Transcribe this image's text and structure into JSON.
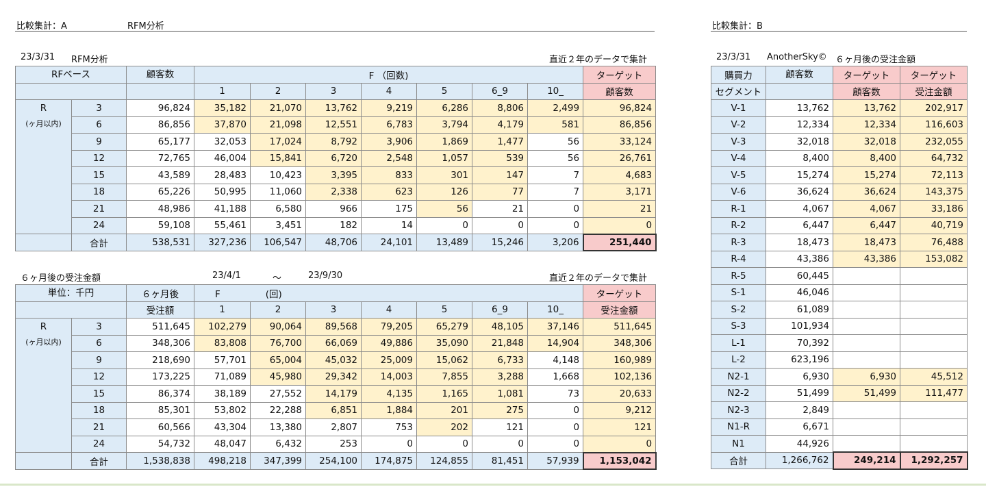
{
  "left": {
    "sheet_title": "比較集計：A",
    "sheet_subtitle": "RFM分析",
    "table1": {
      "date": "23/3/31",
      "title": "RFM分析",
      "note": "直近２年のデータで集計",
      "corner": "RFベース",
      "count_header": "顧客数",
      "f_header": "F （回数)",
      "target_header_1": "ターゲット",
      "target_header_2": "顧客数",
      "f_cols": [
        "1",
        "2",
        "3",
        "4",
        "5",
        "6_9",
        "10_"
      ],
      "r_label": "R",
      "r_sub": "(ヶ月以内)",
      "rows": [
        {
          "r": "3",
          "total": "96,824",
          "f": [
            "35,182",
            "21,070",
            "13,762",
            "9,219",
            "6,286",
            "8,806",
            "2,499"
          ],
          "target": "96,824"
        },
        {
          "r": "6",
          "total": "86,856",
          "f": [
            "37,870",
            "21,098",
            "12,551",
            "6,783",
            "3,794",
            "4,179",
            "581"
          ],
          "target": "86,856"
        },
        {
          "r": "9",
          "total": "65,177",
          "f": [
            "32,053",
            "17,024",
            "8,792",
            "3,906",
            "1,869",
            "1,477",
            "56"
          ],
          "target": "33,124"
        },
        {
          "r": "12",
          "total": "72,765",
          "f": [
            "46,004",
            "15,841",
            "6,720",
            "2,548",
            "1,057",
            "539",
            "56"
          ],
          "target": "26,761"
        },
        {
          "r": "15",
          "total": "43,589",
          "f": [
            "28,483",
            "10,423",
            "3,395",
            "833",
            "301",
            "147",
            "7"
          ],
          "target": "4,683"
        },
        {
          "r": "18",
          "total": "65,226",
          "f": [
            "50,995",
            "11,060",
            "2,338",
            "623",
            "126",
            "77",
            "7"
          ],
          "target": "3,171"
        },
        {
          "r": "21",
          "total": "48,986",
          "f": [
            "41,188",
            "6,580",
            "966",
            "175",
            "56",
            "21",
            "0"
          ],
          "target": "21"
        },
        {
          "r": "24",
          "total": "59,108",
          "f": [
            "55,461",
            "3,451",
            "182",
            "14",
            "0",
            "0",
            "0"
          ],
          "target": "0"
        }
      ],
      "sum_label": "合計",
      "sum": {
        "total": "538,531",
        "f": [
          "327,236",
          "106,547",
          "48,706",
          "24,101",
          "13,489",
          "15,246",
          "3,206"
        ],
        "target": "251,440"
      }
    },
    "table2": {
      "title": "６ヶ月後の受注金額",
      "date_from": "23/4/1",
      "tilde": "～",
      "date_to": "23/9/30",
      "note": "直近２年のデータで集計",
      "corner": "単位：千円",
      "amount_header_1": "６ヶ月後",
      "amount_header_2": "受注額",
      "f_header_a": "F",
      "f_header_b": "(回)",
      "target_header_1": "ターゲット",
      "target_header_2": "受注金額",
      "f_cols": [
        "1",
        "2",
        "3",
        "4",
        "5",
        "6_9",
        "10_"
      ],
      "r_label": "R",
      "r_sub": "(ヶ月以内)",
      "rows": [
        {
          "r": "3",
          "total": "511,645",
          "f": [
            "102,279",
            "90,064",
            "89,568",
            "79,205",
            "65,279",
            "48,105",
            "37,146"
          ],
          "target": "511,645"
        },
        {
          "r": "6",
          "total": "348,306",
          "f": [
            "83,808",
            "76,700",
            "66,069",
            "49,886",
            "35,090",
            "21,848",
            "14,904"
          ],
          "target": "348,306"
        },
        {
          "r": "9",
          "total": "218,690",
          "f": [
            "57,701",
            "65,004",
            "45,032",
            "25,009",
            "15,062",
            "6,733",
            "4,148"
          ],
          "target": "160,989"
        },
        {
          "r": "12",
          "total": "173,225",
          "f": [
            "71,089",
            "45,980",
            "29,342",
            "14,003",
            "7,855",
            "3,288",
            "1,668"
          ],
          "target": "102,136"
        },
        {
          "r": "15",
          "total": "86,374",
          "f": [
            "38,189",
            "27,552",
            "14,179",
            "4,135",
            "1,165",
            "1,081",
            "73"
          ],
          "target": "20,633"
        },
        {
          "r": "18",
          "total": "85,301",
          "f": [
            "53,802",
            "22,288",
            "6,851",
            "1,884",
            "201",
            "275",
            "0"
          ],
          "target": "9,212"
        },
        {
          "r": "21",
          "total": "60,566",
          "f": [
            "43,304",
            "13,380",
            "2,807",
            "753",
            "202",
            "121",
            "0"
          ],
          "target": "121"
        },
        {
          "r": "24",
          "total": "54,732",
          "f": [
            "48,047",
            "6,432",
            "253",
            "0",
            "0",
            "0",
            "0"
          ],
          "target": "0"
        }
      ],
      "sum_label": "合計",
      "sum": {
        "total": "1,538,838",
        "f": [
          "498,218",
          "347,399",
          "254,100",
          "174,875",
          "124,855",
          "81,451",
          "57,939"
        ],
        "target": "1,153,042"
      }
    }
  },
  "right": {
    "sheet_title": "比較集計：B",
    "date": "23/3/31",
    "title": "AnotherSky©",
    "title2": "６ヶ月後の受注金額",
    "seg_header_1": "購買力",
    "seg_header_2": "セグメント",
    "count_header": "顧客数",
    "t1_header_1": "ターゲット",
    "t1_header_2": "顧客数",
    "t2_header_1": "ターゲット",
    "t2_header_2": "受注金額",
    "rows": [
      {
        "seg": "V-1",
        "count": "13,762",
        "tc": "13,762",
        "ta": "202,917"
      },
      {
        "seg": "V-2",
        "count": "12,334",
        "tc": "12,334",
        "ta": "116,603"
      },
      {
        "seg": "V-3",
        "count": "32,018",
        "tc": "32,018",
        "ta": "232,055"
      },
      {
        "seg": "V-4",
        "count": "8,400",
        "tc": "8,400",
        "ta": "64,732"
      },
      {
        "seg": "V-5",
        "count": "15,274",
        "tc": "15,274",
        "ta": "72,113"
      },
      {
        "seg": "V-6",
        "count": "36,624",
        "tc": "36,624",
        "ta": "143,375"
      },
      {
        "seg": "R-1",
        "count": "4,067",
        "tc": "4,067",
        "ta": "33,186"
      },
      {
        "seg": "R-2",
        "count": "6,447",
        "tc": "6,447",
        "ta": "40,719"
      },
      {
        "seg": "R-3",
        "count": "18,473",
        "tc": "18,473",
        "ta": "76,488"
      },
      {
        "seg": "R-4",
        "count": "43,386",
        "tc": "43,386",
        "ta": "153,082"
      },
      {
        "seg": "R-5",
        "count": "60,445",
        "tc": "",
        "ta": ""
      },
      {
        "seg": "S-1",
        "count": "46,046",
        "tc": "",
        "ta": ""
      },
      {
        "seg": "S-2",
        "count": "61,089",
        "tc": "",
        "ta": ""
      },
      {
        "seg": "S-3",
        "count": "101,934",
        "tc": "",
        "ta": ""
      },
      {
        "seg": "L-1",
        "count": "70,392",
        "tc": "",
        "ta": ""
      },
      {
        "seg": "L-2",
        "count": "623,196",
        "tc": "",
        "ta": ""
      },
      {
        "seg": "N2-1",
        "count": "6,930",
        "tc": "6,930",
        "ta": "45,512"
      },
      {
        "seg": "N2-2",
        "count": "51,499",
        "tc": "51,499",
        "ta": "111,477"
      },
      {
        "seg": "N2-3",
        "count": "2,849",
        "tc": "",
        "ta": ""
      },
      {
        "seg": "N1-R",
        "count": "6,671",
        "tc": "",
        "ta": ""
      },
      {
        "seg": "N1",
        "count": "44,926",
        "tc": "",
        "ta": ""
      }
    ],
    "sum_label": "合計",
    "sum": {
      "count": "1,266,762",
      "tc": "249,214",
      "ta": "1,292,257"
    }
  }
}
